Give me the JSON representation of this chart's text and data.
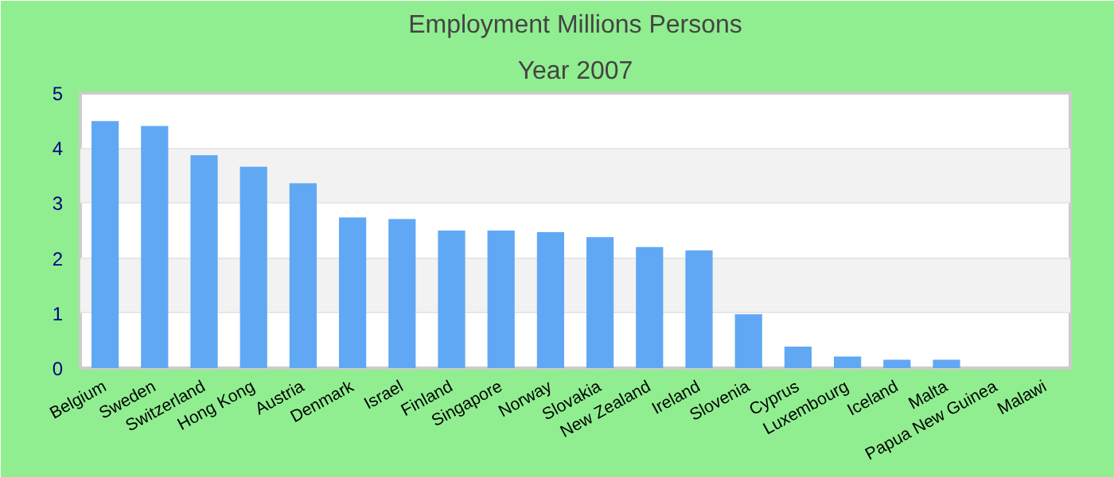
{
  "chart_data": {
    "type": "bar",
    "title": "Employment Millions Persons",
    "subtitle": "Year 2007",
    "categories": [
      "Belgium",
      "Sweden",
      "Switzerland",
      "Hong Kong",
      "Austria",
      "Denmark",
      "Israel",
      "Finland",
      "Singapore",
      "Norway",
      "Slovakia",
      "New Zealand",
      "Ireland",
      "Slovenia",
      "Cyprus",
      "Luxembourg",
      "Iceland",
      "Malta",
      "Papua New Guinea",
      "Malawi"
    ],
    "values": [
      4.49,
      4.4,
      3.87,
      3.66,
      3.36,
      2.74,
      2.71,
      2.5,
      2.5,
      2.47,
      2.38,
      2.2,
      2.14,
      0.98,
      0.39,
      0.21,
      0.15,
      0.15,
      0,
      0
    ],
    "color": "#60a8f4",
    "ylim": [
      0,
      5
    ],
    "yticks": [
      0,
      1,
      2,
      3,
      4,
      5
    ],
    "grid": "y"
  }
}
